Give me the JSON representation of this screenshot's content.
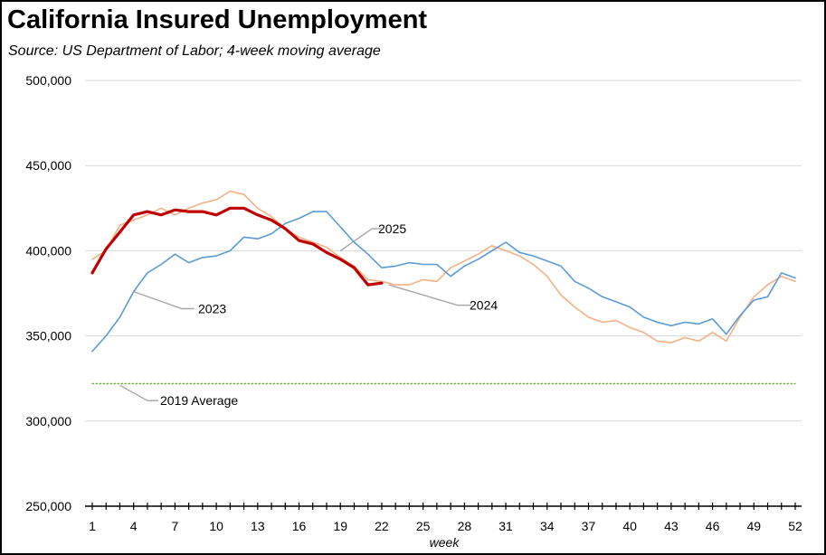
{
  "chart_data": {
    "type": "line",
    "title": "California Insured Unemployment",
    "subtitle": "Source:  US Department of Labor; 4-week moving average",
    "xlabel": "week",
    "ylabel": "",
    "xlim": [
      1,
      52
    ],
    "ylim": [
      250000,
      500000
    ],
    "x_ticks": [
      1,
      4,
      7,
      10,
      13,
      16,
      19,
      22,
      25,
      28,
      31,
      34,
      37,
      40,
      43,
      46,
      49,
      52
    ],
    "y_ticks": [
      {
        "value": 250000,
        "label": "250,000"
      },
      {
        "value": 300000,
        "label": "300,000"
      },
      {
        "value": 350000,
        "label": "350,000"
      },
      {
        "value": 400000,
        "label": "400,000"
      },
      {
        "value": 450000,
        "label": "450,000"
      },
      {
        "value": 500000,
        "label": "500,000"
      }
    ],
    "grid": "horizontal",
    "legend": "none",
    "series": [
      {
        "name": "2023",
        "color": "#5b9bd5",
        "x": [
          1,
          2,
          3,
          4,
          5,
          6,
          7,
          8,
          9,
          10,
          11,
          12,
          13,
          14,
          15,
          16,
          17,
          18,
          19,
          20,
          21,
          22,
          23,
          24,
          25,
          26,
          27,
          28,
          29,
          30,
          31,
          32,
          33,
          34,
          35,
          36,
          37,
          38,
          39,
          40,
          41,
          42,
          43,
          44,
          45,
          46,
          47,
          48,
          49,
          50,
          51,
          52
        ],
        "y": [
          341000,
          350000,
          361000,
          376000,
          387000,
          392000,
          398000,
          393000,
          396000,
          397000,
          400000,
          408000,
          407000,
          410000,
          416000,
          419000,
          423000,
          423000,
          414000,
          405000,
          398000,
          390000,
          391000,
          393000,
          392000,
          392000,
          385000,
          391000,
          395000,
          400000,
          405000,
          399000,
          397000,
          394000,
          391000,
          382000,
          378000,
          373000,
          370000,
          367000,
          361000,
          358000,
          356000,
          358000,
          357000,
          360000,
          351000,
          362000,
          371000,
          373000,
          387000,
          384000
        ]
      },
      {
        "name": "2024",
        "color": "#f4b183",
        "x": [
          1,
          2,
          3,
          4,
          5,
          6,
          7,
          8,
          9,
          10,
          11,
          12,
          13,
          14,
          15,
          16,
          17,
          18,
          19,
          20,
          21,
          22,
          23,
          24,
          25,
          26,
          27,
          28,
          29,
          30,
          31,
          32,
          33,
          34,
          35,
          36,
          37,
          38,
          39,
          40,
          41,
          42,
          43,
          44,
          45,
          46,
          47,
          48,
          49,
          50,
          51,
          52
        ],
        "y": [
          395000,
          400000,
          415000,
          418000,
          421000,
          425000,
          421000,
          425000,
          428000,
          430000,
          435000,
          433000,
          425000,
          420000,
          413000,
          408000,
          405000,
          402000,
          396000,
          391000,
          383000,
          382000,
          380000,
          380000,
          383000,
          382000,
          390000,
          394000,
          398000,
          403000,
          400000,
          397000,
          392000,
          385000,
          374000,
          367000,
          361000,
          358000,
          359000,
          355000,
          352000,
          347000,
          346000,
          349000,
          347000,
          352000,
          347000,
          361000,
          373000,
          380000,
          385000,
          382000
        ]
      },
      {
        "name": "2025",
        "color": "#c00000",
        "x": [
          1,
          2,
          3,
          4,
          5,
          6,
          7,
          8,
          9,
          10,
          11,
          12,
          13,
          14,
          15,
          16,
          17,
          18,
          19,
          20,
          21,
          22
        ],
        "y": [
          387000,
          401000,
          411000,
          421000,
          423000,
          421000,
          424000,
          423000,
          423000,
          421000,
          425000,
          425000,
          421000,
          418000,
          413000,
          406000,
          404000,
          399000,
          395000,
          390000,
          380000,
          381000
        ]
      },
      {
        "name": "2019 Average",
        "color": "#70ad47",
        "x": [
          1,
          52
        ],
        "y": [
          322000,
          322000
        ]
      }
    ],
    "annotations": [
      {
        "text": "2025",
        "series": "2025"
      },
      {
        "text": "2023",
        "series": "2023"
      },
      {
        "text": "2024",
        "series": "2024"
      },
      {
        "text": "2019 Average",
        "series": "2019 Average"
      }
    ],
    "colors": {
      "gridline": "#d9d9d9",
      "axis": "#000000",
      "leader": "#a6a6a6"
    }
  }
}
